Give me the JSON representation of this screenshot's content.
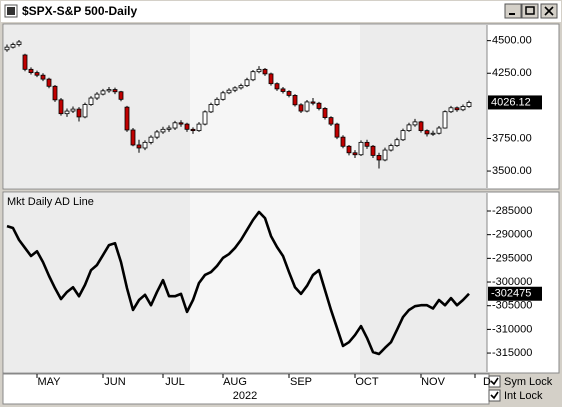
{
  "window": {
    "title": "$SPX-S&P 500-Daily"
  },
  "controls": [
    {
      "label": "Sym Lock",
      "checked": true
    },
    {
      "label": "Int Lock",
      "checked": true
    }
  ],
  "chart_data": [
    {
      "type": "candlestick",
      "categories": [
        null,
        null,
        null,
        null,
        null,
        null,
        null,
        "MAY",
        null,
        null,
        null,
        null,
        null,
        null,
        null,
        null,
        null,
        null,
        "JUN",
        null,
        null,
        null,
        null,
        null,
        null,
        null,
        null,
        null,
        "JUL",
        null,
        null,
        null,
        null,
        null,
        null,
        null,
        null,
        null,
        "AUG",
        null,
        null,
        null,
        null,
        null,
        null,
        null,
        null,
        null,
        null,
        "SEP",
        null,
        null,
        null,
        null,
        null,
        null,
        null,
        null,
        null,
        null,
        "OCT",
        null,
        null,
        null,
        null,
        null,
        null,
        null,
        null,
        null,
        null,
        "NOV",
        null,
        null,
        null,
        null,
        null,
        null,
        null,
        null,
        "D"
      ],
      "open": [
        4430,
        4450,
        4470,
        4390,
        4280,
        4255,
        4235,
        4205,
        4150,
        4046,
        3940,
        3960,
        3975,
        3915,
        4010,
        4060,
        4090,
        4115,
        4125,
        4108,
        3990,
        3815,
        3700,
        3677,
        3720,
        3760,
        3800,
        3820,
        3830,
        3870,
        3860,
        3820,
        3810,
        3860,
        3954,
        4010,
        4050,
        4100,
        4120,
        4138,
        4155,
        4200,
        4262,
        4280,
        4245,
        4170,
        4130,
        4110,
        4080,
        4008,
        3960,
        4030,
        4020,
        3980,
        3910,
        3860,
        3760,
        3690,
        3640,
        3625,
        3720,
        3690,
        3620,
        3585,
        3661,
        3695,
        3740,
        3810,
        3854,
        3877,
        3810,
        3785,
        3790,
        3830,
        3955,
        3985,
        3970,
        3995,
        null,
        null,
        null
      ],
      "high": [
        4470,
        4485,
        4505,
        4400,
        4295,
        4270,
        4250,
        4215,
        4160,
        4060,
        3980,
        3995,
        3990,
        4025,
        4075,
        4105,
        4130,
        4145,
        4140,
        4115,
        4000,
        3830,
        3740,
        3735,
        3775,
        3815,
        3840,
        3850,
        3885,
        3890,
        3870,
        3835,
        3875,
        3965,
        4025,
        4065,
        4115,
        4135,
        4150,
        4170,
        4215,
        4275,
        4305,
        4290,
        4255,
        4180,
        4145,
        4120,
        4090,
        4020,
        4045,
        4060,
        4030,
        3990,
        3920,
        3870,
        3775,
        3700,
        3660,
        3735,
        3740,
        3700,
        3640,
        3680,
        3710,
        3755,
        3825,
        3870,
        3900,
        3885,
        3820,
        3810,
        3845,
        3965,
        4000,
        3995,
        4010,
        4040,
        null,
        null,
        null
      ],
      "low": [
        4415,
        4440,
        4455,
        4265,
        4240,
        4220,
        4190,
        4135,
        4030,
        3925,
        3915,
        3945,
        3880,
        3905,
        4000,
        4045,
        4080,
        4100,
        4090,
        4035,
        3800,
        3690,
        3640,
        3660,
        3705,
        3745,
        3785,
        3800,
        3815,
        3840,
        3800,
        3785,
        3800,
        3850,
        3945,
        4000,
        4040,
        4090,
        4105,
        4125,
        4145,
        4190,
        4250,
        4230,
        4155,
        4115,
        4095,
        4065,
        3995,
        3945,
        3950,
        4005,
        3965,
        3895,
        3845,
        3745,
        3675,
        3620,
        3600,
        3615,
        3670,
        3600,
        3520,
        3575,
        3650,
        3685,
        3730,
        3800,
        3840,
        3795,
        3765,
        3770,
        3780,
        3825,
        3945,
        3955,
        3960,
        3985,
        null,
        null,
        null
      ],
      "close": [
        4450,
        4470,
        4490,
        4280,
        4255,
        4235,
        4205,
        4150,
        4046,
        3940,
        3960,
        3975,
        3915,
        4010,
        4060,
        4090,
        4115,
        4125,
        4108,
        4050,
        3815,
        3700,
        3677,
        3720,
        3760,
        3800,
        3820,
        3830,
        3870,
        3860,
        3820,
        3810,
        3860,
        3954,
        4010,
        4050,
        4100,
        4120,
        4138,
        4155,
        4200,
        4262,
        4280,
        4245,
        4170,
        4130,
        4110,
        4080,
        4008,
        3960,
        4030,
        4020,
        3980,
        3910,
        3860,
        3760,
        3690,
        3640,
        3625,
        3720,
        3690,
        3620,
        3585,
        3661,
        3695,
        3740,
        3810,
        3854,
        3877,
        3810,
        3785,
        3790,
        3830,
        3955,
        3985,
        3970,
        3995,
        4026.12,
        null,
        null,
        null
      ],
      "up_color": "#ffffff",
      "down_color": "#c00000",
      "ylim": [
        3370,
        4620
      ],
      "yticks": [
        {
          "value": 3500,
          "label": "3500.00"
        },
        {
          "value": 3750,
          "label": "3750.00"
        },
        {
          "value": 4250,
          "label": "4250.00"
        },
        {
          "value": 4500,
          "label": "4500.00"
        }
      ]
    },
    {
      "type": "line",
      "title": "Mkt Daily AD Line",
      "xlabel": "2022",
      "color": "#000000",
      "values": [
        -288200,
        -288600,
        -291100,
        -292800,
        -294500,
        -293500,
        -295800,
        -298700,
        -301300,
        -303600,
        -302100,
        -301100,
        -303000,
        -300600,
        -297500,
        -296400,
        -294300,
        -292200,
        -291800,
        -295800,
        -301300,
        -305900,
        -303800,
        -302700,
        -304900,
        -302100,
        -299600,
        -303000,
        -303000,
        -302500,
        -306300,
        -303800,
        -300200,
        -298500,
        -297900,
        -296600,
        -294900,
        -294100,
        -292800,
        -291100,
        -289000,
        -286900,
        -285200,
        -286500,
        -290300,
        -292600,
        -294500,
        -297900,
        -301100,
        -302500,
        -300800,
        -298500,
        -297500,
        -301700,
        -305900,
        -309700,
        -313500,
        -312700,
        -311200,
        -309300,
        -311800,
        -314800,
        -315200,
        -313900,
        -312700,
        -310100,
        -307400,
        -305900,
        -305100,
        -304900,
        -304900,
        -305600,
        -303800,
        -304900,
        -303400,
        -304900,
        -303800,
        -302475,
        null,
        null,
        null
      ],
      "ylim": [
        -319000,
        -281200
      ],
      "yticks": [
        -315000,
        -310000,
        -305000,
        -300000,
        -295000,
        -290000,
        -285000
      ]
    }
  ]
}
